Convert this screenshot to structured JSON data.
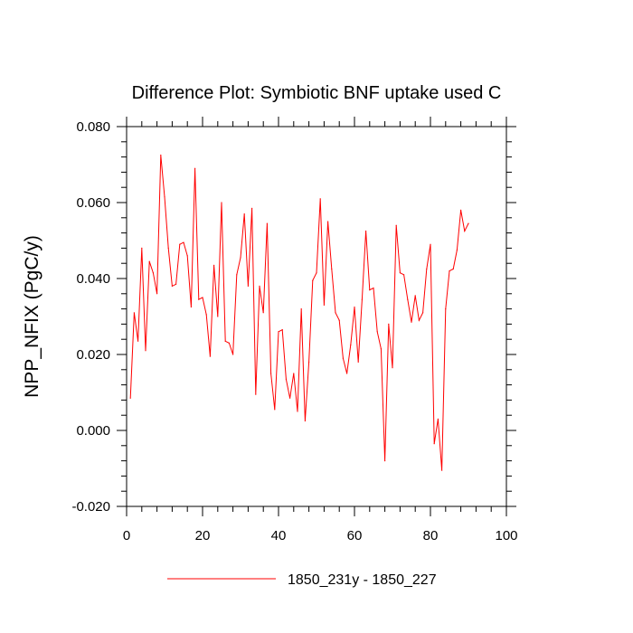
{
  "chart_data": {
    "type": "line",
    "title": "Difference Plot: Symbiotic BNF uptake used C",
    "xlabel": "",
    "ylabel": "NPP_NFIX  (PgC/y)",
    "xlim": [
      0,
      100
    ],
    "ylim": [
      -0.02,
      0.08
    ],
    "xticks": [
      0,
      20,
      40,
      60,
      80,
      100
    ],
    "xtick_labels": [
      "0",
      "20",
      "40",
      "60",
      "80",
      "100"
    ],
    "yticks": [
      -0.02,
      0,
      0.02,
      0.04,
      0.06,
      0.08
    ],
    "ytick_labels": [
      "-0.020",
      "0.000",
      "0.020",
      "0.040",
      "0.060",
      "0.080"
    ],
    "grid": false,
    "legend_position": "bottom-center",
    "series": [
      {
        "name": "1850_231y - 1850_227",
        "color": "#ff0000",
        "x": [
          1,
          2,
          3,
          4,
          5,
          6,
          7,
          8,
          9,
          10,
          11,
          12,
          13,
          14,
          15,
          16,
          17,
          18,
          19,
          20,
          21,
          22,
          23,
          24,
          25,
          26,
          27,
          28,
          29,
          30,
          31,
          32,
          33,
          34,
          35,
          36,
          37,
          38,
          39,
          40,
          41,
          42,
          43,
          44,
          45,
          46,
          47,
          48,
          49,
          50,
          51,
          52,
          53,
          54,
          55,
          56,
          57,
          58,
          59,
          60,
          61,
          62,
          63,
          64,
          65,
          66,
          67,
          68,
          69,
          70,
          71,
          72,
          73,
          74,
          75,
          76,
          77,
          78,
          79,
          80,
          81,
          82,
          83,
          84,
          85,
          86,
          87,
          88,
          89,
          90
        ],
        "values": [
          0.0085,
          0.031,
          0.0235,
          0.048,
          0.021,
          0.0445,
          0.0415,
          0.036,
          0.0725,
          0.0615,
          0.048,
          0.038,
          0.0385,
          0.049,
          0.0495,
          0.046,
          0.0325,
          0.069,
          0.0345,
          0.035,
          0.0305,
          0.0195,
          0.0435,
          0.03,
          0.06,
          0.0235,
          0.023,
          0.02,
          0.041,
          0.0455,
          0.057,
          0.038,
          0.0585,
          0.0095,
          0.038,
          0.031,
          0.0545,
          0.015,
          0.0055,
          0.026,
          0.0265,
          0.0135,
          0.0085,
          0.015,
          0.005,
          0.032,
          0.0025,
          0.018,
          0.0395,
          0.0415,
          0.061,
          0.033,
          0.055,
          0.0425,
          0.031,
          0.029,
          0.019,
          0.015,
          0.0225,
          0.0325,
          0.018,
          0.0345,
          0.0525,
          0.037,
          0.0375,
          0.026,
          0.0215,
          -0.008,
          0.028,
          0.0165,
          0.054,
          0.0415,
          0.041,
          0.0345,
          0.0285,
          0.0355,
          0.029,
          0.031,
          0.0425,
          0.049,
          -0.0035,
          0.003,
          -0.0105,
          0.032,
          0.042,
          0.0425,
          0.0475,
          0.058,
          0.0525,
          0.0545
        ]
      }
    ]
  }
}
